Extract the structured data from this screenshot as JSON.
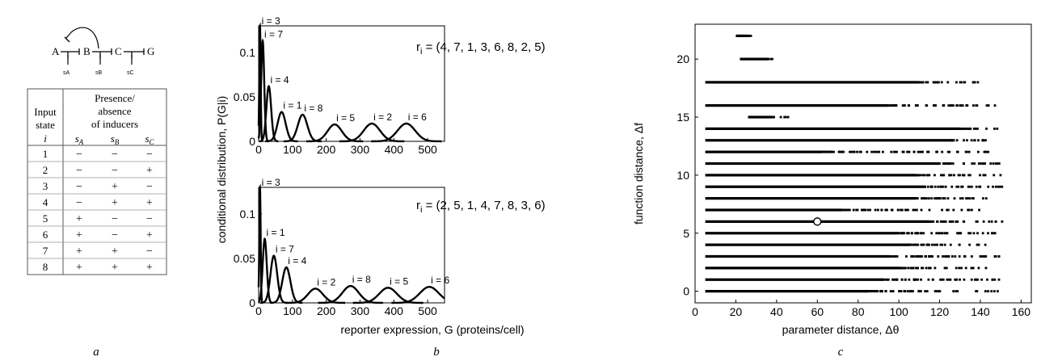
{
  "panel_labels": [
    "a",
    "b",
    "c"
  ],
  "network": {
    "nodes": [
      "A",
      "B",
      "C",
      "G"
    ],
    "inducers": [
      "sA",
      "sB",
      "sC"
    ]
  },
  "table": {
    "header_input": [
      "Input",
      "state"
    ],
    "header_presence": [
      "Presence/",
      "absence",
      "of inducers"
    ],
    "sub_i": "i",
    "sub_cols": [
      "A",
      "B",
      "C"
    ],
    "rows": [
      {
        "i": "1",
        "v": [
          "−",
          "−",
          "−"
        ]
      },
      {
        "i": "2",
        "v": [
          "−",
          "−",
          "+"
        ]
      },
      {
        "i": "3",
        "v": [
          "−",
          "+",
          "−"
        ]
      },
      {
        "i": "4",
        "v": [
          "−",
          "+",
          "+"
        ]
      },
      {
        "i": "5",
        "v": [
          "+",
          "−",
          "−"
        ]
      },
      {
        "i": "6",
        "v": [
          "+",
          "−",
          "+"
        ]
      },
      {
        "i": "7",
        "v": [
          "+",
          "+",
          "−"
        ]
      },
      {
        "i": "8",
        "v": [
          "+",
          "+",
          "+"
        ]
      }
    ]
  },
  "chart_data": [
    {
      "type": "line",
      "panel": "b-top",
      "annotation": "r",
      "annotation_sub": "i",
      "annotation_rest": " = (4, 7, 1, 3, 6, 8, 2, 5)",
      "ylabel": "conditional distribution, P(G|i)",
      "xlim": [
        0,
        550
      ],
      "ylim": [
        0,
        0.13
      ],
      "xticks": [
        "0",
        "100",
        "200",
        "300",
        "400",
        "500"
      ],
      "yticks": [
        "0",
        "0.05",
        "0.1"
      ],
      "peaks": [
        {
          "label": "i = 3",
          "mean": 4,
          "sd": 2,
          "height": 0.13
        },
        {
          "label": "i = 7",
          "mean": 12,
          "sd": 4.5,
          "height": 0.113
        },
        {
          "label": "i = 4",
          "mean": 30,
          "sd": 7,
          "height": 0.062
        },
        {
          "label": "i = 1",
          "mean": 68,
          "sd": 12,
          "height": 0.033
        },
        {
          "label": "i = 8",
          "mean": 130,
          "sd": 14,
          "height": 0.03
        },
        {
          "label": "i = 5",
          "mean": 225,
          "sd": 21,
          "height": 0.019
        },
        {
          "label": "i = 2",
          "mean": 335,
          "sd": 24,
          "height": 0.02
        },
        {
          "label": "i = 6",
          "mean": 437,
          "sd": 26,
          "height": 0.02
        }
      ]
    },
    {
      "type": "line",
      "panel": "b-bottom",
      "annotation": "r",
      "annotation_sub": "i",
      "annotation_rest": " = (2, 5, 1, 4, 7, 8, 3, 6)",
      "xlabel": "reporter expression, G (proteins/cell)",
      "xlim": [
        0,
        550
      ],
      "ylim": [
        0,
        0.13
      ],
      "xticks": [
        "0",
        "100",
        "200",
        "300",
        "400",
        "500"
      ],
      "yticks": [
        "0",
        "0.05",
        "0.1"
      ],
      "peaks": [
        {
          "label": "i = 3",
          "mean": 4,
          "sd": 2,
          "height": 0.13
        },
        {
          "label": "i = 1",
          "mean": 18,
          "sd": 6,
          "height": 0.072
        },
        {
          "label": "i = 7",
          "mean": 45,
          "sd": 10,
          "height": 0.053
        },
        {
          "label": "i = 4",
          "mean": 82,
          "sd": 12,
          "height": 0.04
        },
        {
          "label": "i = 2",
          "mean": 168,
          "sd": 22,
          "height": 0.016
        },
        {
          "label": "i = 8",
          "mean": 272,
          "sd": 24,
          "height": 0.019
        },
        {
          "label": "i = 5",
          "mean": 383,
          "sd": 26,
          "height": 0.017
        },
        {
          "label": "i = 6",
          "mean": 505,
          "sd": 28,
          "height": 0.018
        }
      ]
    },
    {
      "type": "scatter",
      "panel": "c",
      "xlabel": "parameter distance, Δθ",
      "ylabel": "function distance, Δf",
      "xlim": [
        0,
        165
      ],
      "ylim": [
        -1,
        23
      ],
      "xticks": [
        "0",
        "20",
        "40",
        "60",
        "80",
        "100",
        "120",
        "140",
        "160"
      ],
      "yticks": [
        "0",
        "5",
        "10",
        "15",
        "20"
      ],
      "bands": [
        {
          "y": 0,
          "solid": [
            5,
            85
          ],
          "sparse": [
            85,
            150
          ]
        },
        {
          "y": 1,
          "solid": [
            5,
            92
          ],
          "sparse": [
            92,
            150
          ]
        },
        {
          "y": 2,
          "solid": [
            5,
            100
          ],
          "sparse": [
            100,
            148
          ]
        },
        {
          "y": 3,
          "solid": [
            5,
            95
          ],
          "sparse": [
            95,
            150
          ]
        },
        {
          "y": 4,
          "solid": [
            5,
            105
          ],
          "sparse": [
            105,
            145
          ]
        },
        {
          "y": 5,
          "solid": [
            5,
            100
          ],
          "sparse": [
            100,
            150
          ]
        },
        {
          "y": 6,
          "solid": [
            5,
            115
          ],
          "sparse": [
            115,
            152
          ]
        },
        {
          "y": 7,
          "solid": [
            5,
            72
          ],
          "sparse": [
            72,
            140
          ]
        },
        {
          "y": 8,
          "solid": [
            5,
            108
          ],
          "sparse": [
            108,
            150
          ]
        },
        {
          "y": 9,
          "solid": [
            5,
            112
          ],
          "sparse": [
            112,
            152
          ]
        },
        {
          "y": 10,
          "solid": [
            5,
            108
          ],
          "sparse": [
            108,
            150
          ]
        },
        {
          "y": 11,
          "solid": [
            5,
            120
          ],
          "sparse": [
            120,
            150
          ]
        },
        {
          "y": 12,
          "solid": [
            5,
            62
          ],
          "sparse": [
            62,
            145
          ]
        },
        {
          "y": 13,
          "solid": [
            5,
            125
          ],
          "sparse": [
            125,
            148
          ]
        },
        {
          "y": 14,
          "solid": [
            5,
            130
          ],
          "sparse": [
            130,
            150
          ]
        },
        {
          "y": 15,
          "solid": [
            26,
            38
          ],
          "sparse": [
            38,
            46
          ]
        },
        {
          "y": 16,
          "solid": [
            5,
            95
          ],
          "sparse": [
            95,
            150
          ]
        },
        {
          "y": 18,
          "solid": [
            5,
            110
          ],
          "sparse": [
            110,
            140
          ]
        },
        {
          "y": 20,
          "solid": [
            22,
            36
          ],
          "sparse": [
            36,
            38
          ]
        },
        {
          "y": 22,
          "solid": [
            20,
            26
          ],
          "sparse": [
            26,
            29
          ]
        }
      ],
      "highlight": {
        "x": 60,
        "y": 6
      }
    }
  ]
}
